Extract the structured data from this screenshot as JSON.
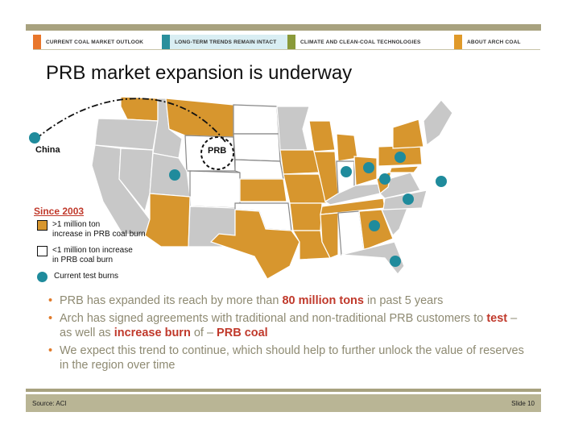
{
  "nav": {
    "items": [
      {
        "label": "CURRENT COAL MARKET OUTLOOK",
        "color": "#e8762b",
        "active": false
      },
      {
        "label": "LONG-TERM TRENDS REMAIN INTACT",
        "color": "#2a8f9c",
        "active": true
      },
      {
        "label": "CLIMATE AND CLEAN-COAL TECHNOLOGIES",
        "color": "#8a9a3a",
        "active": false
      },
      {
        "label": "ABOUT ARCH COAL",
        "color": "#e09a2a",
        "active": false
      }
    ]
  },
  "title": "PRB market expansion is underway",
  "map": {
    "china_label": "China",
    "prb_label": "PRB",
    "colors": {
      "increase_big": "#d7962e",
      "increase_small": "#ffffff",
      "other": "#c8c8c8",
      "test_burn": "#1f8b9c"
    }
  },
  "legend": {
    "title": "Since 2003",
    "big_line1": ">1 million ton",
    "big_line2": "increase in PRB coal burn",
    "small_line1": "<1 million ton increase",
    "small_line2": "in PRB coal burn",
    "dots": "Current test burns"
  },
  "bullets": {
    "b1_pre": "PRB has expanded its reach by more than ",
    "b1_hl": "80 million tons",
    "b1_post": " in past 5 years",
    "b2_pre": "Arch has signed agreements with traditional and non-traditional PRB customers to ",
    "b2_hl1": "test",
    "b2_mid": " – as well as ",
    "b2_hl2": "increase burn",
    "b2_mid2": " of – ",
    "b2_hl3": "PRB coal",
    "b3": "We expect this trend to continue, which should help to further unlock the value of reserves in the region over time"
  },
  "footer": {
    "source": "Source: ACI",
    "slide": "Slide 10"
  }
}
